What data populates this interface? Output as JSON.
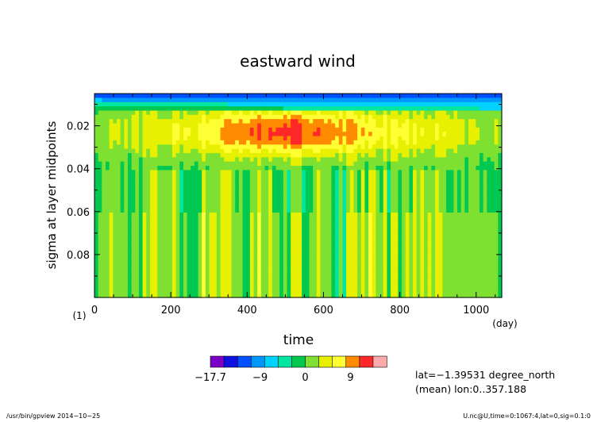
{
  "chart_data": {
    "type": "heatmap",
    "title": "eastward wind",
    "xlabel": "time",
    "x_unit": "(day)",
    "ylabel": "sigma at layer midpoints",
    "y_unit": "(1)",
    "xlim": [
      0,
      1067
    ],
    "ylim": [
      0.1,
      0.005
    ],
    "x_ticks": [
      0,
      200,
      400,
      600,
      800,
      1000
    ],
    "x_tick_labels": [
      "0",
      "200",
      "400",
      "600",
      "800",
      "1000"
    ],
    "y_ticks": [
      0.02,
      0.04,
      0.06,
      0.08
    ],
    "y_tick_labels": [
      "0.02",
      "0.04",
      "0.06",
      "0.08"
    ],
    "colorbar": {
      "levels": [
        -17.7,
        -16.2,
        -13.5,
        -10.8,
        -8.1,
        -5.4,
        -2.7,
        0,
        2.7,
        5.4,
        8.1,
        10.8,
        13.5
      ],
      "tick_labels": [
        "−17.7",
        "−9",
        "0",
        "9"
      ],
      "tick_values": [
        -17.7,
        -9,
        0,
        9
      ],
      "colors": [
        "#7a00c8",
        "#1010e0",
        "#0050ff",
        "#0096ff",
        "#00d2ff",
        "#00e6a0",
        "#00c850",
        "#7ee030",
        "#e6f000",
        "#ffff33",
        "#ff8c00",
        "#ff2828",
        "#ffaaaa"
      ]
    },
    "annotations": {
      "lat": "lat=−1.39531 degree_north",
      "lon": "(mean) lon:0..357.188",
      "footer_left": "/usr/bin/gpview  2014−10−25",
      "footer_right": "U.nc@U,time=0:1067:4,lat=0,sig=0.1:0"
    },
    "field_model": {
      "value_range": [
        -17.7,
        13.5
      ],
      "description_free": true,
      "features": [
        {
          "kind": "easterly_top",
          "sigma_max": 0.012,
          "peak": -14
        },
        {
          "kind": "westerly_jet",
          "sigma_center": 0.023,
          "x_center": 500,
          "peak": 12.5
        },
        {
          "kind": "low_band",
          "sigma_range": [
            0.05,
            0.1
          ],
          "base": 2.0
        }
      ]
    }
  }
}
